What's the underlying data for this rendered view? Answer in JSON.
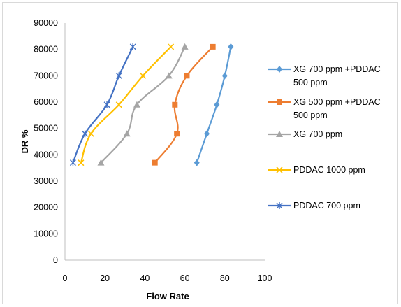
{
  "chart_data": {
    "type": "line",
    "title": "",
    "xlabel": "Flow Rate",
    "ylabel": "DR %",
    "xlim": [
      0,
      100
    ],
    "ylim": [
      0,
      90000
    ],
    "x_ticks": [
      "0",
      "20",
      "40",
      "60",
      "80",
      "100"
    ],
    "y_ticks": [
      "0",
      "10000",
      "20000",
      "30000",
      "40000",
      "50000",
      "60000",
      "70000",
      "80000",
      "90000"
    ],
    "grid": false,
    "legend_position": "right",
    "series": [
      {
        "name_lines": [
          "XG 700 ppm +PDDAC",
          "500 ppm"
        ],
        "color": "#5b9bd5",
        "marker": "diamond",
        "x": [
          66,
          71,
          76,
          80,
          83
        ],
        "y": [
          37000,
          48000,
          59000,
          70000,
          81000
        ]
      },
      {
        "name_lines": [
          "XG 500 ppm +PDDAC",
          "500 ppm"
        ],
        "color": "#ed7d31",
        "marker": "square",
        "x": [
          45,
          56,
          55,
          61,
          74
        ],
        "y": [
          37000,
          48000,
          59000,
          70000,
          81000
        ]
      },
      {
        "name_lines": [
          "XG 700 ppm"
        ],
        "color": "#a5a5a5",
        "marker": "triangle",
        "x": [
          18,
          31,
          36,
          52,
          60
        ],
        "y": [
          37000,
          48000,
          59000,
          70000,
          81000
        ]
      },
      {
        "name_lines": [
          "PDDAC 1000 ppm"
        ],
        "color": "#ffc000",
        "marker": "x",
        "x": [
          8,
          13,
          27,
          39,
          53
        ],
        "y": [
          37000,
          48000,
          59000,
          70000,
          81000
        ]
      },
      {
        "name_lines": [
          "PDDAC 700 ppm"
        ],
        "color": "#4472c4",
        "marker": "star",
        "x": [
          4,
          10,
          21,
          27,
          34
        ],
        "y": [
          37000,
          48000,
          59000,
          70000,
          81000
        ]
      }
    ]
  }
}
